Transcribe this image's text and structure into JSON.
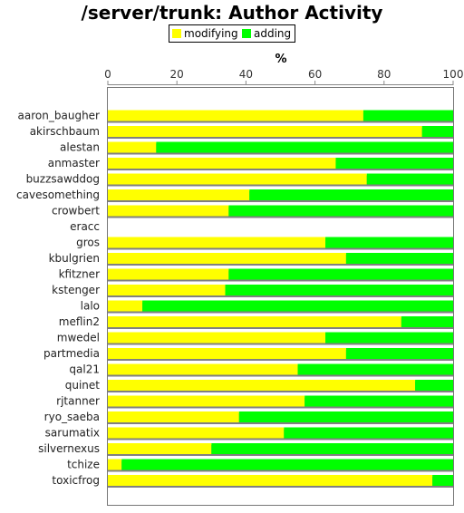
{
  "chart_data": {
    "type": "bar",
    "orientation": "horizontal",
    "stacked": true,
    "title": "/server/trunk: Author Activity",
    "xlabel": "%",
    "xlim": [
      0,
      100
    ],
    "xticks": [
      "0",
      "20",
      "40",
      "60",
      "80",
      "100"
    ],
    "legend": {
      "placement": "top-center",
      "entries": [
        "modifying",
        "adding"
      ]
    },
    "colors": {
      "modifying": "#ffff00",
      "adding": "#00ff00",
      "shadow": "#808080"
    },
    "categories": [
      "aaron_baugher",
      "akirschbaum",
      "alestan",
      "anmaster",
      "buzzsawddog",
      "cavesomething",
      "crowbert",
      "eracc",
      "gros",
      "kbulgrien",
      "kfitzner",
      "kstenger",
      "lalo",
      "meflin2",
      "mwedel",
      "partmedia",
      "qal21",
      "quinet",
      "rjtanner",
      "ryo_saeba",
      "sarumatix",
      "silvernexus",
      "tchize",
      "toxicfrog"
    ],
    "series": [
      {
        "name": "modifying",
        "values": [
          74,
          91,
          14,
          66,
          75,
          41,
          35,
          0,
          63,
          69,
          35,
          34,
          10,
          85,
          63,
          69,
          55,
          89,
          57,
          38,
          51,
          30,
          4,
          94
        ]
      },
      {
        "name": "adding",
        "values": [
          26,
          9,
          86,
          34,
          25,
          59,
          65,
          0,
          37,
          31,
          65,
          66,
          90,
          15,
          37,
          31,
          45,
          11,
          43,
          62,
          49,
          70,
          96,
          6
        ]
      }
    ]
  }
}
